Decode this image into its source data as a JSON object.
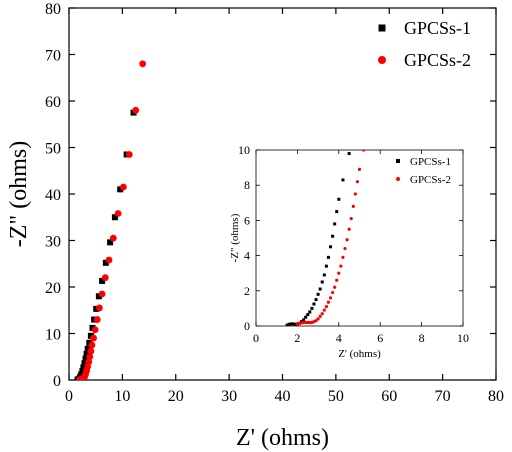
{
  "chart_data": [
    {
      "id": "main",
      "type": "scatter",
      "title": "",
      "xlabel": "Z' (ohms)",
      "ylabel": "-Z\" (ohms)",
      "xlim": [
        0,
        80
      ],
      "ylim": [
        0,
        80
      ],
      "xticks": [
        0,
        10,
        20,
        30,
        40,
        50,
        60,
        70,
        80
      ],
      "yticks": [
        0,
        10,
        20,
        30,
        40,
        50,
        60,
        70,
        80
      ],
      "grid": false,
      "legend_position": "top-right",
      "series": [
        {
          "name": "GPCSs-1",
          "marker": "square",
          "color": "#000000",
          "x": [
            1.6,
            1.9,
            2.1,
            2.3,
            2.5,
            2.7,
            2.9,
            3.1,
            3.3,
            3.5,
            3.8,
            4.1,
            4.4,
            4.7,
            5.1,
            5.6,
            6.2,
            6.9,
            7.7,
            8.6,
            9.6,
            10.8,
            12.1
          ],
          "y": [
            0.1,
            0.3,
            0.7,
            1.2,
            1.9,
            2.7,
            3.6,
            4.6,
            5.6,
            6.7,
            8.0,
            9.5,
            11.2,
            13.0,
            15.3,
            18.0,
            21.3,
            25.2,
            29.6,
            35.0,
            41.0,
            48.5,
            57.5
          ]
        },
        {
          "name": "GPCSs-2",
          "marker": "circle",
          "color": "#ff0000",
          "x": [
            2.0,
            2.3,
            2.6,
            2.9,
            3.1,
            3.3,
            3.5,
            3.7,
            3.9,
            4.1,
            4.3,
            4.6,
            4.9,
            5.3,
            5.7,
            6.2,
            6.8,
            7.5,
            8.3,
            9.2,
            10.2,
            11.3,
            12.5,
            13.8
          ],
          "y": [
            0.1,
            0.2,
            0.3,
            0.6,
            1.2,
            2.0,
            2.9,
            3.9,
            5.0,
            6.2,
            7.5,
            9.0,
            10.8,
            13.0,
            15.5,
            18.5,
            22.0,
            25.8,
            30.5,
            35.8,
            41.5,
            48.5,
            58.0,
            68.0
          ]
        }
      ]
    },
    {
      "id": "inset",
      "type": "scatter",
      "title": "",
      "xlabel": "Z' (ohms)",
      "ylabel": "-Z\" (ohms)",
      "xlim": [
        0,
        10
      ],
      "ylim": [
        0,
        10
      ],
      "xticks": [
        0,
        2,
        4,
        6,
        8,
        10
      ],
      "yticks": [
        0,
        2,
        4,
        6,
        8,
        10
      ],
      "grid": false,
      "legend_position": "top-right",
      "series": [
        {
          "name": "GPCSs-1",
          "marker": "square",
          "color": "#000000",
          "x": [
            1.5,
            1.6,
            1.7,
            1.8,
            1.9,
            2.0,
            2.1,
            2.2,
            2.3,
            2.4,
            2.5,
            2.6,
            2.7,
            2.8,
            2.9,
            3.0,
            3.1,
            3.2,
            3.3,
            3.4,
            3.5,
            3.6,
            3.7,
            3.8,
            3.9,
            4.0,
            4.2,
            4.5
          ],
          "y": [
            0.05,
            0.1,
            0.12,
            0.12,
            0.1,
            0.1,
            0.15,
            0.25,
            0.35,
            0.5,
            0.65,
            0.8,
            1.0,
            1.25,
            1.5,
            1.8,
            2.1,
            2.5,
            2.9,
            3.4,
            3.9,
            4.5,
            5.1,
            5.8,
            6.5,
            7.2,
            8.3,
            9.8
          ]
        },
        {
          "name": "GPCSs-2",
          "marker": "circle",
          "color": "#ff0000",
          "x": [
            2.0,
            2.1,
            2.2,
            2.3,
            2.4,
            2.5,
            2.6,
            2.7,
            2.8,
            2.9,
            3.0,
            3.1,
            3.2,
            3.3,
            3.4,
            3.5,
            3.6,
            3.7,
            3.8,
            3.9,
            4.0,
            4.1,
            4.2,
            4.3,
            4.4,
            4.5,
            4.6,
            4.7,
            4.8,
            4.9,
            5.0,
            5.2
          ],
          "y": [
            0.1,
            0.15,
            0.18,
            0.2,
            0.2,
            0.2,
            0.2,
            0.2,
            0.25,
            0.3,
            0.4,
            0.55,
            0.7,
            0.9,
            1.1,
            1.35,
            1.6,
            1.9,
            2.2,
            2.6,
            3.0,
            3.4,
            3.9,
            4.4,
            4.9,
            5.5,
            6.1,
            6.8,
            7.5,
            8.2,
            8.9,
            10.0
          ]
        }
      ]
    }
  ]
}
